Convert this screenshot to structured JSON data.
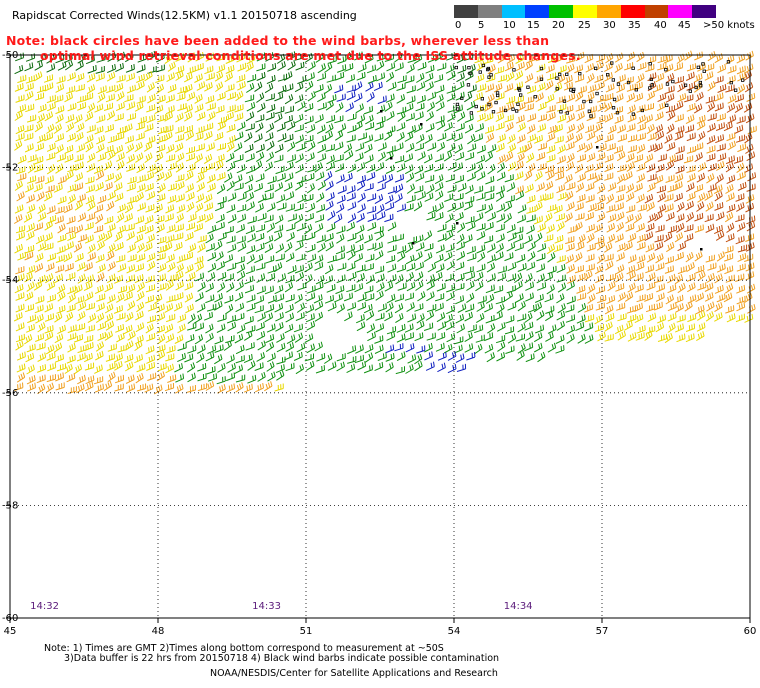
{
  "title": "Rapidscat Corrected Winds(12.5KM) v1.1 20150718 ascending",
  "note": {
    "line1": "Note: black circles have been added to the wind barbs, wherever less than",
    "line2": "optimal wind retrieval conditions are met due to the ISS attitude changes."
  },
  "legend": {
    "labels": [
      "0",
      "5",
      "10",
      "15",
      "20",
      "25",
      "30",
      "35",
      "40",
      "45",
      ">50 knots"
    ],
    "colors": [
      "#404040",
      "#7f7f7f",
      "#00bfff",
      "#0040ff",
      "#00c000",
      "#ffff00",
      "#ffa500",
      "#ff0000",
      "#c04000",
      "#ff00ff",
      "#400080"
    ]
  },
  "axes": {
    "lon_labels": [
      "45",
      "48",
      "51",
      "54",
      "57",
      "60"
    ],
    "lat_labels": [
      "-50",
      "-52",
      "-54",
      "-56",
      "-58",
      "-60"
    ],
    "lon_range": [
      45,
      60
    ],
    "lat_range": [
      -60,
      -50
    ],
    "grid": "dotted"
  },
  "times": [
    {
      "label": "14:32",
      "lon": 45.7
    },
    {
      "label": "14:33",
      "lon": 50.2
    },
    {
      "label": "14:34",
      "lon": 55.3
    }
  ],
  "footer": {
    "line1": "Note: 1) Times are GMT 2)Times along bottom correspond to measurement at ~50S",
    "line2": "3)Data buffer is 22 hrs from 20150718 4) Black wind barbs indicate possible contamination",
    "line3": "NOAA/NESDIS/Center for Satellite Applications and Research"
  },
  "wind_colors": {
    "yellow": "#e8d800",
    "orange": "#f0a020",
    "brown": "#c05010",
    "green": "#109010",
    "darkgreen": "#0a6a0a",
    "blue": "#1020c0",
    "black": "#000000"
  }
}
